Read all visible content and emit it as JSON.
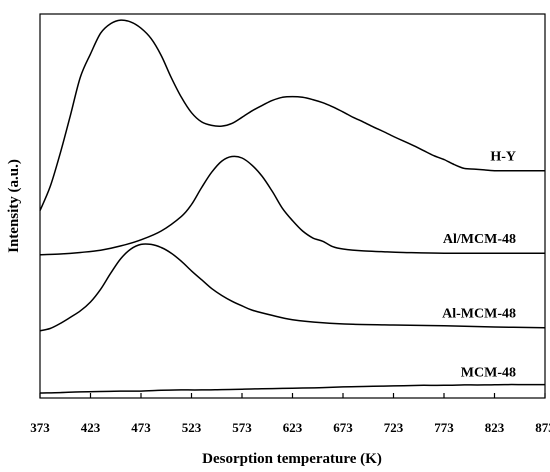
{
  "chart_data": {
    "type": "line",
    "title": "",
    "xlabel": "Desorption temperature (K)",
    "ylabel": "Intensity (a.u.)",
    "xlim": [
      373,
      873
    ],
    "ylim": [
      0,
      100
    ],
    "x_ticks": [
      373,
      423,
      473,
      523,
      573,
      623,
      673,
      723,
      773,
      823,
      873
    ],
    "grid": false,
    "legend": "labels placed beside each curve on the right",
    "y_tick_labels": false,
    "series": [
      {
        "name": "H-Y",
        "points": [
          [
            373,
            48.8
          ],
          [
            383,
            55.0
          ],
          [
            393,
            63.7
          ],
          [
            403,
            73.5
          ],
          [
            413,
            83.6
          ],
          [
            423,
            89.6
          ],
          [
            433,
            95.0
          ],
          [
            443,
            97.5
          ],
          [
            453,
            98.4
          ],
          [
            463,
            97.9
          ],
          [
            473,
            96.3
          ],
          [
            483,
            93.6
          ],
          [
            493,
            89.2
          ],
          [
            503,
            83.4
          ],
          [
            513,
            78.3
          ],
          [
            523,
            74.3
          ],
          [
            533,
            71.9
          ],
          [
            543,
            71.0
          ],
          [
            553,
            70.8
          ],
          [
            563,
            71.5
          ],
          [
            573,
            73.1
          ],
          [
            583,
            74.8
          ],
          [
            593,
            76.2
          ],
          [
            603,
            77.5
          ],
          [
            613,
            78.3
          ],
          [
            623,
            78.5
          ],
          [
            633,
            78.3
          ],
          [
            643,
            77.7
          ],
          [
            653,
            76.9
          ],
          [
            663,
            75.8
          ],
          [
            673,
            74.5
          ],
          [
            683,
            73.1
          ],
          [
            693,
            71.9
          ],
          [
            703,
            70.6
          ],
          [
            713,
            69.4
          ],
          [
            723,
            68.1
          ],
          [
            733,
            66.9
          ],
          [
            743,
            65.7
          ],
          [
            753,
            64.4
          ],
          [
            763,
            63.1
          ],
          [
            773,
            62.1
          ],
          [
            783,
            60.8
          ],
          [
            793,
            59.8
          ],
          [
            803,
            59.6
          ],
          [
            813,
            59.4
          ],
          [
            823,
            59.2
          ],
          [
            833,
            59.2
          ],
          [
            843,
            59.2
          ],
          [
            853,
            59.2
          ],
          [
            863,
            59.2
          ],
          [
            873,
            59.2
          ]
        ]
      },
      {
        "name": "Al/MCM-48",
        "points": [
          [
            373,
            37.3
          ],
          [
            393,
            37.5
          ],
          [
            413,
            37.9
          ],
          [
            433,
            38.5
          ],
          [
            453,
            39.6
          ],
          [
            473,
            41.2
          ],
          [
            493,
            43.5
          ],
          [
            513,
            47.3
          ],
          [
            523,
            50.4
          ],
          [
            533,
            54.8
          ],
          [
            543,
            58.8
          ],
          [
            553,
            61.7
          ],
          [
            563,
            62.9
          ],
          [
            573,
            62.5
          ],
          [
            583,
            60.6
          ],
          [
            593,
            57.7
          ],
          [
            603,
            53.8
          ],
          [
            613,
            49.4
          ],
          [
            623,
            46.2
          ],
          [
            633,
            43.5
          ],
          [
            643,
            41.7
          ],
          [
            653,
            40.8
          ],
          [
            663,
            39.4
          ],
          [
            673,
            38.8
          ],
          [
            693,
            38.3
          ],
          [
            713,
            38.1
          ],
          [
            733,
            37.9
          ],
          [
            773,
            37.7
          ],
          [
            823,
            37.7
          ],
          [
            873,
            37.7
          ]
        ]
      },
      {
        "name": "Al-MCM-48",
        "points": [
          [
            373,
            17.5
          ],
          [
            383,
            18.1
          ],
          [
            393,
            19.4
          ],
          [
            403,
            21.0
          ],
          [
            413,
            22.7
          ],
          [
            423,
            25.0
          ],
          [
            433,
            28.3
          ],
          [
            443,
            32.5
          ],
          [
            453,
            36.3
          ],
          [
            463,
            38.8
          ],
          [
            473,
            40.0
          ],
          [
            483,
            40.0
          ],
          [
            493,
            39.2
          ],
          [
            503,
            37.7
          ],
          [
            513,
            35.6
          ],
          [
            523,
            33.1
          ],
          [
            533,
            30.8
          ],
          [
            543,
            28.5
          ],
          [
            553,
            26.7
          ],
          [
            563,
            25.2
          ],
          [
            573,
            24.0
          ],
          [
            583,
            22.9
          ],
          [
            603,
            21.5
          ],
          [
            623,
            20.4
          ],
          [
            653,
            19.6
          ],
          [
            683,
            19.2
          ],
          [
            723,
            19.0
          ],
          [
            773,
            18.8
          ],
          [
            823,
            18.5
          ],
          [
            873,
            18.3
          ]
        ]
      },
      {
        "name": "MCM-48",
        "points": [
          [
            373,
            1.3
          ],
          [
            393,
            1.4
          ],
          [
            413,
            1.6
          ],
          [
            433,
            1.7
          ],
          [
            453,
            1.8
          ],
          [
            473,
            1.8
          ],
          [
            493,
            2.0
          ],
          [
            513,
            2.1
          ],
          [
            533,
            2.1
          ],
          [
            553,
            2.2
          ],
          [
            573,
            2.3
          ],
          [
            593,
            2.4
          ],
          [
            613,
            2.5
          ],
          [
            633,
            2.6
          ],
          [
            653,
            2.7
          ],
          [
            673,
            2.9
          ],
          [
            693,
            3.0
          ],
          [
            713,
            3.1
          ],
          [
            733,
            3.2
          ],
          [
            753,
            3.3
          ],
          [
            773,
            3.3
          ],
          [
            793,
            3.4
          ],
          [
            813,
            3.4
          ],
          [
            833,
            3.5
          ],
          [
            853,
            3.5
          ],
          [
            873,
            3.5
          ]
        ]
      }
    ]
  }
}
